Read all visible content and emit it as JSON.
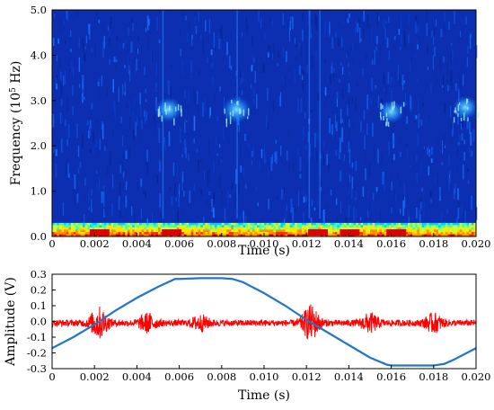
{
  "chart_data": [
    {
      "type": "heatmap",
      "title": "",
      "xlabel": "Time (s)",
      "ylabel_prefix": "Frequency (10",
      "ylabel_exp": "5",
      "ylabel_suffix": " Hz)",
      "xlim": [
        0,
        0.02
      ],
      "ylim": [
        0,
        5.0
      ],
      "x_ticks": [
        "0",
        "0.002",
        "0.004",
        "0.006",
        "0.008",
        "0.010",
        "0.012",
        "0.014",
        "0.016",
        "0.018",
        "0.020"
      ],
      "y_ticks": [
        "0.0",
        "1.0",
        "2.0",
        "3.0",
        "4.0",
        "5.0"
      ],
      "colormap": "jet",
      "background_color": "#0b2fb0",
      "low_band_max": 0.3,
      "hotspots": [
        {
          "t": 0.0055,
          "f": 2.8,
          "intensity": 0.45
        },
        {
          "t": 0.0087,
          "f": 2.8,
          "intensity": 0.5
        },
        {
          "t": 0.016,
          "f": 2.75,
          "intensity": 0.4
        },
        {
          "t": 0.0195,
          "f": 2.85,
          "intensity": 0.4
        }
      ],
      "grid": false
    },
    {
      "type": "line",
      "title": "",
      "xlabel": "Time (s)",
      "ylabel": "Amplitude (V)",
      "xlim": [
        0,
        0.02
      ],
      "ylim": [
        -0.3,
        0.3
      ],
      "x_ticks": [
        "0",
        "0.002",
        "0.004",
        "0.006",
        "0.008",
        "0.010",
        "0.012",
        "0.014",
        "0.016",
        "0.018",
        "0.020"
      ],
      "y_ticks": [
        "0.3",
        "0.2",
        "0.1",
        "0.0",
        "-0.1",
        "-0.2",
        "-0.3"
      ],
      "series": [
        {
          "color": "#1f77c8",
          "kind": "clipped-sine",
          "points": [
            [
              0,
              -0.17
            ],
            [
              0.001,
              -0.1
            ],
            [
              0.002,
              -0.02
            ],
            [
              0.003,
              0.07
            ],
            [
              0.004,
              0.15
            ],
            [
              0.005,
              0.22
            ],
            [
              0.0058,
              0.27
            ],
            [
              0.006,
              0.27
            ],
            [
              0.007,
              0.275
            ],
            [
              0.008,
              0.275
            ],
            [
              0.0085,
              0.27
            ],
            [
              0.009,
              0.25
            ],
            [
              0.01,
              0.18
            ],
            [
              0.011,
              0.1
            ],
            [
              0.012,
              0.01
            ],
            [
              0.013,
              -0.07
            ],
            [
              0.014,
              -0.15
            ],
            [
              0.015,
              -0.23
            ],
            [
              0.0158,
              -0.275
            ],
            [
              0.016,
              -0.28
            ],
            [
              0.017,
              -0.28
            ],
            [
              0.018,
              -0.28
            ],
            [
              0.0185,
              -0.27
            ],
            [
              0.019,
              -0.24
            ],
            [
              0.02,
              -0.17
            ]
          ]
        },
        {
          "color": "#ff0000",
          "kind": "noise",
          "mean": -0.01,
          "base_amplitude": 0.02,
          "bursts": [
            {
              "t": 0.0022,
              "amp": 0.09
            },
            {
              "t": 0.0045,
              "amp": 0.05
            },
            {
              "t": 0.007,
              "amp": 0.04
            },
            {
              "t": 0.0122,
              "amp": 0.1
            },
            {
              "t": 0.015,
              "amp": 0.05
            },
            {
              "t": 0.018,
              "amp": 0.05
            }
          ]
        }
      ],
      "grid": false
    }
  ]
}
